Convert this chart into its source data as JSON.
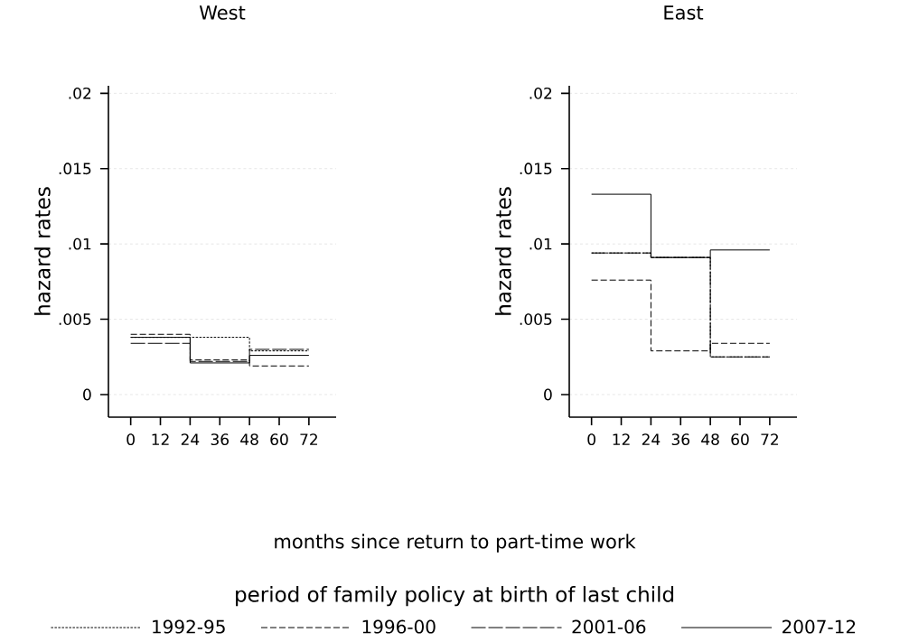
{
  "chart_data": [
    {
      "type": "step",
      "title": "West",
      "xlabel": "months since return to part-time work",
      "ylabel": "hazard rates",
      "legend_title": "period of family policy at birth of last child",
      "legend": "bottom",
      "grid": "y",
      "xlim": [
        -9,
        83
      ],
      "ylim": [
        -0.0015,
        0.0205
      ],
      "xticks": [
        0,
        12,
        24,
        36,
        48,
        60,
        72
      ],
      "yticks": [
        {
          "value": 0,
          "label": "0"
        },
        {
          "value": 0.005,
          "label": ".005"
        },
        {
          "value": 0.01,
          "label": ".01"
        },
        {
          "value": 0.015,
          "label": ".015"
        },
        {
          "value": 0.02,
          "label": ".02"
        }
      ],
      "x": [
        0,
        24,
        48,
        72
      ],
      "series": [
        {
          "name": "1992-95",
          "color": "#000000",
          "line_style": "dotted",
          "values": [
            0.0038,
            0.0038,
            0.0029,
            0.0029
          ]
        },
        {
          "name": "1996-00",
          "color": "#000000",
          "line_style": "dashed",
          "values": [
            0.004,
            0.0023,
            0.0019,
            0.0019
          ]
        },
        {
          "name": "2001-06",
          "color": "#000000",
          "line_style": "long dashed",
          "values": [
            0.0034,
            0.0022,
            0.003,
            0.003
          ]
        },
        {
          "name": "2007-12",
          "color": "#000000",
          "line_style": "solid",
          "values": [
            0.0038,
            0.0021,
            0.0026,
            0.0026
          ]
        }
      ]
    },
    {
      "type": "step",
      "title": "East",
      "ylabel": "hazard rates",
      "grid": "y",
      "xlim": [
        -9,
        83
      ],
      "ylim": [
        -0.0015,
        0.0205
      ],
      "xticks": [
        0,
        12,
        24,
        36,
        48,
        60,
        72
      ],
      "yticks": [
        {
          "value": 0,
          "label": "0"
        },
        {
          "value": 0.005,
          "label": ".005"
        },
        {
          "value": 0.01,
          "label": ".01"
        },
        {
          "value": 0.015,
          "label": ".015"
        },
        {
          "value": 0.02,
          "label": ".02"
        }
      ],
      "x": [
        0,
        24,
        48,
        72
      ],
      "series": [
        {
          "color": "#000000",
          "line_style": "dotted",
          "values": [
            0.0094,
            0.0091,
            0.0025,
            0.0025
          ]
        },
        {
          "color": "#000000",
          "line_style": "dashed",
          "values": [
            0.0076,
            0.0029,
            0.0034,
            0.0034
          ]
        },
        {
          "color": "#000000",
          "line_style": "long dashed",
          "values": [
            0.0094,
            0.0091,
            0.0025,
            0.0025
          ]
        },
        {
          "color": "#000000",
          "line_style": "solid",
          "values": [
            0.0133,
            0.0091,
            0.0096,
            0.0096
          ]
        }
      ]
    }
  ]
}
